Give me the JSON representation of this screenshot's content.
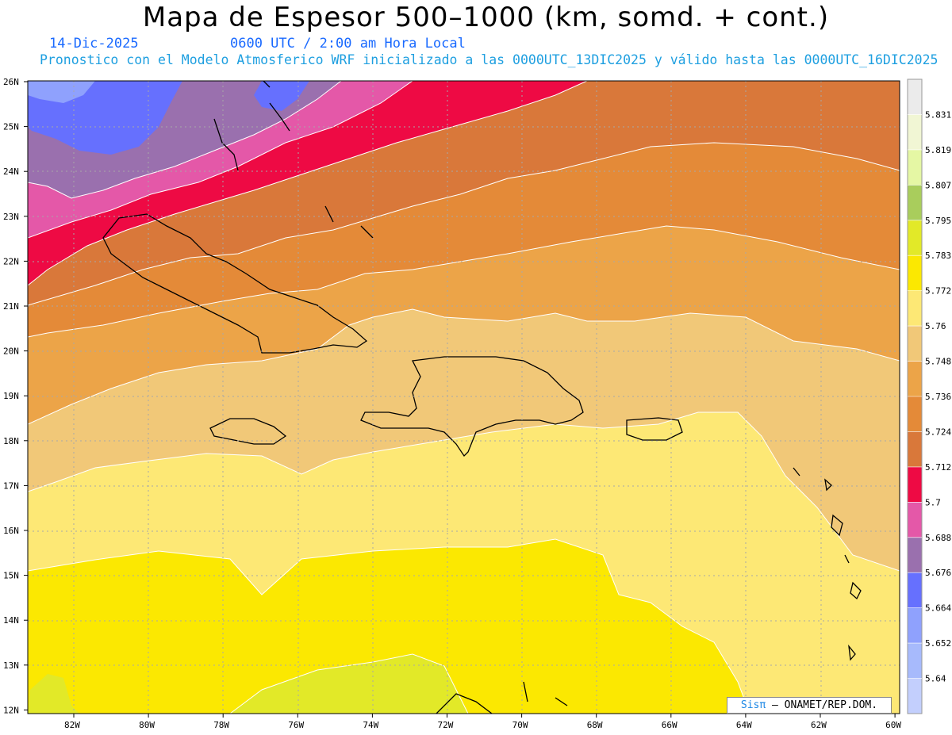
{
  "title": "Mapa de Espesor 500–1000 (km, somd. + cont.)",
  "date": "14-Dic-2025",
  "time": "0600 UTC / 2:00 am Hora Local",
  "subtitle": "Pronostico con el Modelo Atmosferico WRF inicializado a las 0000UTC_13DIC2025 y válido hasta las  0000UTC_16DIC2025",
  "credit": {
    "logo": "Sisπ",
    "text": " – ONAMET/REP.DOM."
  },
  "lat_labels": [
    "26N",
    "25N",
    "24N",
    "23N",
    "22N",
    "21N",
    "20N",
    "19N",
    "18N",
    "17N",
    "16N",
    "15N",
    "14N",
    "13N",
    "12N"
  ],
  "lon_labels": [
    "82W",
    "80W",
    "78W",
    "76W",
    "74W",
    "72W",
    "70W",
    "68W",
    "66W",
    "64W",
    "62W",
    "60W"
  ],
  "colorbar": {
    "labels": [
      "5.831",
      "5.819",
      "5.807",
      "5.795",
      "5.783",
      "5.772",
      "5.76",
      "5.748",
      "5.736",
      "5.724",
      "5.712",
      "5.7",
      "5.688",
      "5.676",
      "5.664",
      "5.652",
      "5.64"
    ],
    "colors": [
      "#ebebeb",
      "#f1f6d4",
      "#e5f7a4",
      "#a9cd5c",
      "#e2e928",
      "#fbe801",
      "#fde875",
      "#f1c878",
      "#eca448",
      "#e48a38",
      "#d9783a",
      "#ee0a44",
      "#e458a8",
      "#9a70ae",
      "#6670fe",
      "#8fa1fd",
      "#a7bafc",
      "#c3cffd"
    ]
  }
}
